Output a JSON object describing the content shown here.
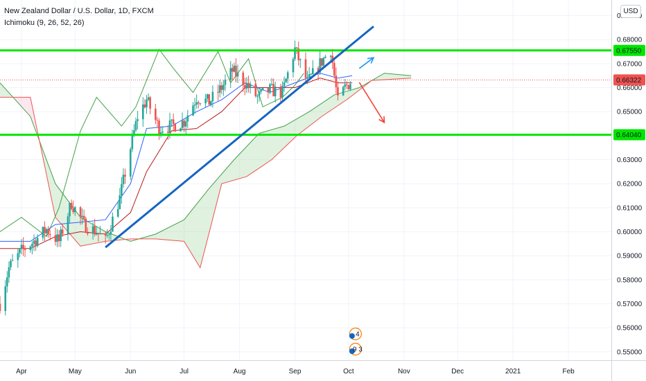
{
  "legend": {
    "symbol_line": "New Zealand Dollar / U.S. Dollar, 1D, FXCM",
    "indicator_line": "Ichimoku (9, 26, 52, 26)"
  },
  "currency_button": "USD",
  "colors": {
    "up": "#26a69a",
    "down": "#ef5350",
    "conversion": "#2962ff",
    "base": "#b71c1c",
    "lagging": "#43a047",
    "cloud_bull": "#a5d6a7",
    "cloud_bear": "#f8bbd0",
    "level": "#00e600",
    "trend": "#1565c0",
    "arrow_up": "#2196f3",
    "arrow_down": "#f44336"
  },
  "chart_data": {
    "type": "candlestick",
    "symbol": "New Zealand Dollar / U.S. Dollar, 1D, FXCM",
    "ylim": [
      0.5465,
      0.6965
    ],
    "x_range": [
      "2020-03-20",
      "2021-02-25"
    ],
    "y_ticks": [
      "0.69000",
      "0.68000",
      "0.67000",
      "0.66000",
      "0.65000",
      "0.64000",
      "0.63000",
      "0.62000",
      "0.61000",
      "0.60000",
      "0.59000",
      "0.58000",
      "0.57000",
      "0.56000",
      "0.55000"
    ],
    "y_tick_values": [
      0.69,
      0.68,
      0.67,
      0.66,
      0.65,
      0.64,
      0.63,
      0.62,
      0.61,
      0.6,
      0.59,
      0.58,
      0.57,
      0.56,
      0.55
    ],
    "x_ticks": [
      {
        "label": "Apr",
        "date": "2020-04-01"
      },
      {
        "label": "May",
        "date": "2020-05-01"
      },
      {
        "label": "Jun",
        "date": "2020-06-01"
      },
      {
        "label": "Jul",
        "date": "2020-07-01"
      },
      {
        "label": "Aug",
        "date": "2020-08-01"
      },
      {
        "label": "Sep",
        "date": "2020-09-01"
      },
      {
        "label": "Oct",
        "date": "2020-10-01"
      },
      {
        "label": "Nov",
        "date": "2020-11-01"
      },
      {
        "label": "Dec",
        "date": "2020-12-01"
      },
      {
        "label": "2021",
        "date": "2021-01-01"
      },
      {
        "label": "Feb",
        "date": "2021-02-01"
      }
    ],
    "price_labels": [
      {
        "label": "0.67550",
        "value": 0.6755,
        "kind": "level"
      },
      {
        "label": "0.66322",
        "value": 0.66322,
        "kind": "last"
      },
      {
        "label": "0.64040",
        "value": 0.6404,
        "kind": "level"
      }
    ],
    "horizontal_levels": [
      0.6755,
      0.6404
    ],
    "last_price": 0.66322,
    "trendline": {
      "from": {
        "date": "2020-05-18",
        "price": 0.5935
      },
      "to": {
        "date": "2020-10-15",
        "price": 0.6855
      }
    },
    "arrows": [
      {
        "kind": "up",
        "from": {
          "date": "2020-10-07",
          "price": 0.668
        },
        "to": {
          "date": "2020-10-15",
          "price": 0.6725
        }
      },
      {
        "kind": "down",
        "from": {
          "date": "2020-10-07",
          "price": 0.6622
        },
        "to": {
          "date": "2020-10-21",
          "price": 0.6455
        }
      }
    ],
    "event_badges": [
      {
        "date": "2020-10-01",
        "label": "4"
      },
      {
        "date": "2020-10-01",
        "label": "9 3"
      }
    ],
    "price_anchors": [
      [
        "2020-03-20",
        0.57
      ],
      [
        "2020-03-25",
        0.585
      ],
      [
        "2020-04-01",
        0.592
      ],
      [
        "2020-04-08",
        0.596
      ],
      [
        "2020-04-15",
        0.601
      ],
      [
        "2020-04-22",
        0.596
      ],
      [
        "2020-04-29",
        0.612
      ],
      [
        "2020-05-06",
        0.603
      ],
      [
        "2020-05-13",
        0.6
      ],
      [
        "2020-05-18",
        0.596
      ],
      [
        "2020-05-26",
        0.614
      ],
      [
        "2020-06-01",
        0.635
      ],
      [
        "2020-06-05",
        0.648
      ],
      [
        "2020-06-10",
        0.655
      ],
      [
        "2020-06-17",
        0.643
      ],
      [
        "2020-06-24",
        0.644
      ],
      [
        "2020-07-01",
        0.646
      ],
      [
        "2020-07-08",
        0.656
      ],
      [
        "2020-07-15",
        0.654
      ],
      [
        "2020-07-22",
        0.66
      ],
      [
        "2020-07-28",
        0.667
      ],
      [
        "2020-08-04",
        0.662
      ],
      [
        "2020-08-11",
        0.656
      ],
      [
        "2020-08-18",
        0.659
      ],
      [
        "2020-08-25",
        0.658
      ],
      [
        "2020-09-01",
        0.676
      ],
      [
        "2020-09-08",
        0.662
      ],
      [
        "2020-09-15",
        0.67
      ],
      [
        "2020-09-21",
        0.676
      ],
      [
        "2020-09-25",
        0.654
      ],
      [
        "2020-09-29",
        0.66
      ],
      [
        "2020-10-03",
        0.6632
      ]
    ],
    "conversion_line": [
      [
        "2020-03-20",
        0.596
      ],
      [
        "2020-04-06",
        0.596
      ],
      [
        "2020-04-20",
        0.603
      ],
      [
        "2020-05-04",
        0.604
      ],
      [
        "2020-05-18",
        0.605
      ],
      [
        "2020-06-01",
        0.62
      ],
      [
        "2020-06-10",
        0.643
      ],
      [
        "2020-06-24",
        0.644
      ],
      [
        "2020-07-08",
        0.65
      ],
      [
        "2020-07-22",
        0.655
      ],
      [
        "2020-08-04",
        0.662
      ],
      [
        "2020-08-18",
        0.658
      ],
      [
        "2020-09-01",
        0.662
      ],
      [
        "2020-09-15",
        0.666
      ],
      [
        "2020-09-25",
        0.664
      ],
      [
        "2020-10-03",
        0.665
      ]
    ],
    "base_line": [
      [
        "2020-03-20",
        0.593
      ],
      [
        "2020-04-06",
        0.593
      ],
      [
        "2020-04-20",
        0.598
      ],
      [
        "2020-05-04",
        0.6
      ],
      [
        "2020-05-18",
        0.599
      ],
      [
        "2020-06-01",
        0.608
      ],
      [
        "2020-06-10",
        0.625
      ],
      [
        "2020-06-24",
        0.642
      ],
      [
        "2020-07-08",
        0.643
      ],
      [
        "2020-07-22",
        0.65
      ],
      [
        "2020-08-04",
        0.66
      ],
      [
        "2020-08-18",
        0.66
      ],
      [
        "2020-09-01",
        0.66
      ],
      [
        "2020-09-15",
        0.664
      ],
      [
        "2020-09-25",
        0.662
      ],
      [
        "2020-10-03",
        0.662
      ]
    ],
    "lagging_span": [
      [
        "2020-03-20",
        0.6
      ],
      [
        "2020-04-01",
        0.606
      ],
      [
        "2020-04-15",
        0.598
      ],
      [
        "2020-04-22",
        0.61
      ],
      [
        "2020-05-04",
        0.642
      ],
      [
        "2020-05-13",
        0.656
      ],
      [
        "2020-05-27",
        0.644
      ],
      [
        "2020-06-04",
        0.652
      ],
      [
        "2020-06-17",
        0.676
      ],
      [
        "2020-06-25",
        0.668
      ],
      [
        "2020-07-06",
        0.658
      ],
      [
        "2020-07-20",
        0.675
      ],
      [
        "2020-07-27",
        0.662
      ],
      [
        "2020-08-06",
        0.672
      ],
      [
        "2020-08-14",
        0.652
      ],
      [
        "2020-08-25",
        0.656
      ],
      [
        "2020-09-01",
        0.661
      ],
      [
        "2020-09-06",
        0.666
      ]
    ],
    "span_a": [
      [
        "2020-03-20",
        0.662
      ],
      [
        "2020-04-06",
        0.648
      ],
      [
        "2020-04-20",
        0.62
      ],
      [
        "2020-05-04",
        0.606
      ],
      [
        "2020-05-18",
        0.6
      ],
      [
        "2020-06-01",
        0.596
      ],
      [
        "2020-06-15",
        0.599
      ],
      [
        "2020-07-01",
        0.605
      ],
      [
        "2020-07-15",
        0.618
      ],
      [
        "2020-07-29",
        0.63
      ],
      [
        "2020-08-12",
        0.641
      ],
      [
        "2020-08-26",
        0.644
      ],
      [
        "2020-09-09",
        0.65
      ],
      [
        "2020-09-23",
        0.657
      ],
      [
        "2020-10-07",
        0.66
      ],
      [
        "2020-10-21",
        0.666
      ],
      [
        "2020-11-05",
        0.665
      ]
    ],
    "span_b": [
      [
        "2020-03-20",
        0.656
      ],
      [
        "2020-04-06",
        0.656
      ],
      [
        "2020-04-20",
        0.606
      ],
      [
        "2020-05-04",
        0.594
      ],
      [
        "2020-05-18",
        0.596
      ],
      [
        "2020-06-01",
        0.597
      ],
      [
        "2020-06-15",
        0.597
      ],
      [
        "2020-07-01",
        0.596
      ],
      [
        "2020-07-10",
        0.585
      ],
      [
        "2020-07-22",
        0.62
      ],
      [
        "2020-08-05",
        0.623
      ],
      [
        "2020-08-19",
        0.63
      ],
      [
        "2020-09-02",
        0.64
      ],
      [
        "2020-09-16",
        0.648
      ],
      [
        "2020-09-30",
        0.655
      ],
      [
        "2020-10-14",
        0.663
      ],
      [
        "2020-11-05",
        0.664
      ]
    ]
  }
}
